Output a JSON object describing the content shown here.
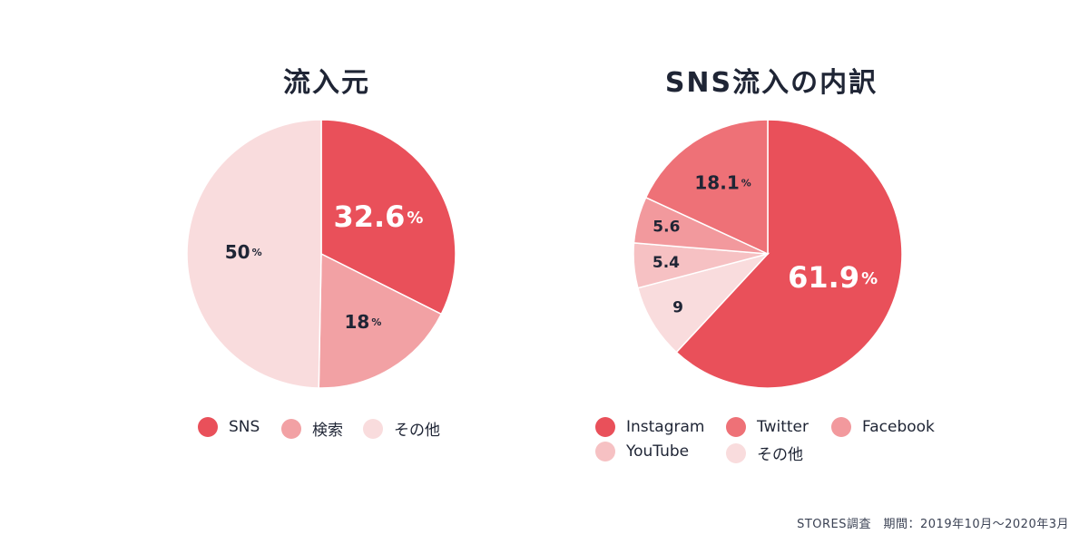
{
  "chart_data": [
    {
      "type": "pie",
      "title": "流入元",
      "slices": [
        {
          "label": "SNS",
          "value": 32.6,
          "text": "32.6",
          "unit": "%",
          "color": "#e9505a"
        },
        {
          "label": "検索",
          "value": 18,
          "text": "18",
          "unit": "%",
          "color": "#f2a1a4"
        },
        {
          "label": "その他",
          "value": 50,
          "text": "50",
          "unit": "%",
          "color": "#f9dcdd"
        }
      ],
      "legend": [
        "SNS",
        "検索",
        "その他"
      ],
      "legend_position": "bottom"
    },
    {
      "type": "pie",
      "title": "SNS流入の内訳",
      "slices": [
        {
          "label": "Instagram",
          "value": 61.9,
          "text": "61.9",
          "unit": "%",
          "color": "#e9505a"
        },
        {
          "label": "その他",
          "value": 9,
          "text": "9",
          "unit": "",
          "color": "#f9dcdd"
        },
        {
          "label": "YouTube",
          "value": 5.4,
          "text": "5.4",
          "unit": "",
          "color": "#f6c1c3"
        },
        {
          "label": "Facebook",
          "value": 5.6,
          "text": "5.6",
          "unit": "",
          "color": "#f2999d"
        },
        {
          "label": "Twitter",
          "value": 18.1,
          "text": "18.1",
          "unit": "%",
          "color": "#ee7177"
        }
      ],
      "legend": [
        "Instagram",
        "Twitter",
        "Facebook",
        "YouTube",
        "その他"
      ],
      "legend_position": "bottom"
    }
  ],
  "footnote": "STORES調査　期間：2019年10月～2020年3月"
}
